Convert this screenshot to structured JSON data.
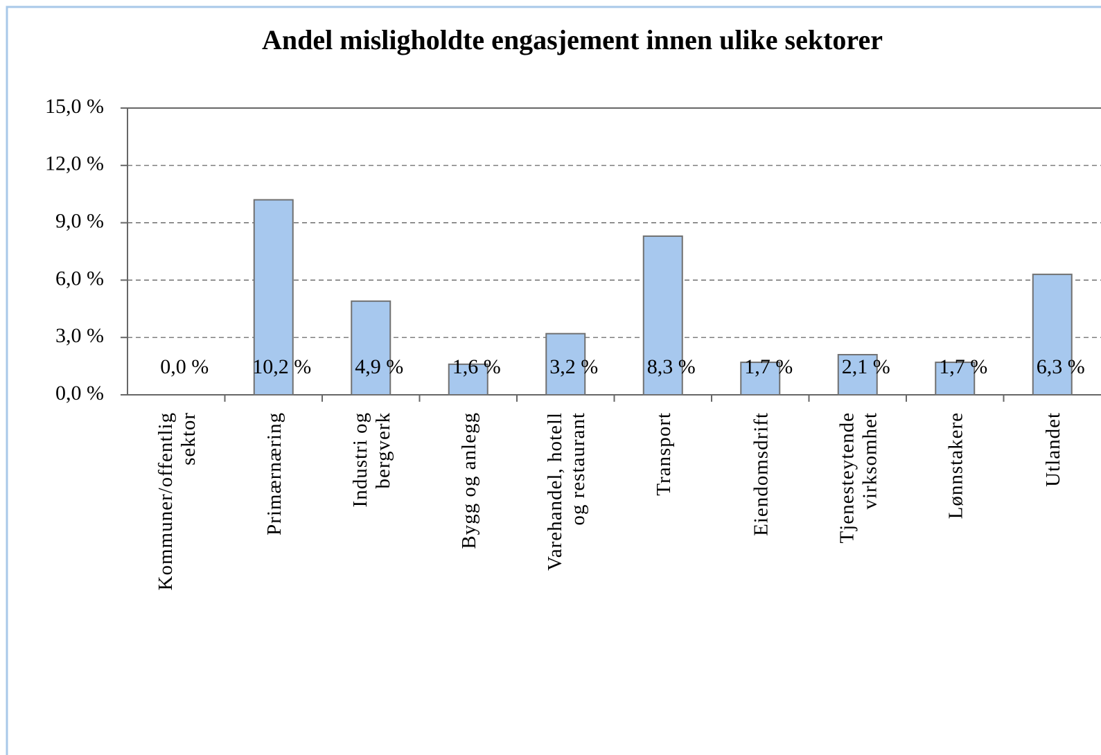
{
  "chart_data": {
    "type": "bar",
    "title": "Andel misligholdte engasjement innen ulike sektorer",
    "categories": [
      "Kommuner/offentlig\nsektor",
      "Primærnæring",
      "Industri og\nbergverk",
      "Bygg og anlegg",
      "Varehandel, hotell\nog restaurant",
      "Transport",
      "Eiendomsdrift",
      "Tjenesteytende\nvirksomhet",
      "Lønnstakere",
      "Utlandet"
    ],
    "values": [
      0.0,
      10.2,
      4.9,
      1.6,
      3.2,
      8.3,
      1.7,
      2.1,
      1.7,
      6.3
    ],
    "value_labels": [
      "0,0 %",
      "10,2 %",
      "4,9 %",
      "1,6 %",
      "3,2 %",
      "8,3 %",
      "1,7 %",
      "2,1 %",
      "1,7 %",
      "6,3 %"
    ],
    "color": "#a7c8ee",
    "ylim": [
      0,
      15
    ],
    "yticks": [
      {
        "value": 0,
        "label": "0,0 %"
      },
      {
        "value": 3,
        "label": "3,0 %"
      },
      {
        "value": 6,
        "label": "6,0 %"
      },
      {
        "value": 9,
        "label": "9,0 %"
      },
      {
        "value": 12,
        "label": "12,0 %"
      },
      {
        "value": 15,
        "label": "15,0 %"
      }
    ],
    "grid": true
  }
}
